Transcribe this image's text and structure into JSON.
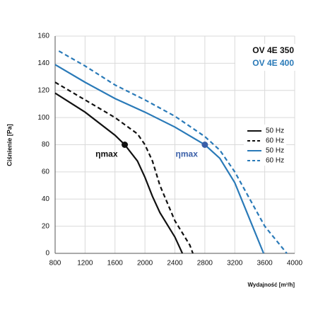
{
  "chart_data": {
    "type": "line",
    "xlabel": "Wydajność [m³/h]",
    "ylabel": "Ciśnienie [Pa]",
    "xlim": [
      800,
      4000
    ],
    "xticks": [
      800,
      1200,
      1600,
      2000,
      2400,
      2800,
      3200,
      3600,
      4000
    ],
    "ylim": [
      0,
      160
    ],
    "yticks": [
      0,
      20,
      40,
      60,
      80,
      100,
      120,
      140,
      160
    ],
    "grid": true,
    "legend_titles": [
      {
        "text": "OV 4E 350",
        "color": "#111111"
      },
      {
        "text": "OV 4E 400",
        "color": "#2a7ab8"
      }
    ],
    "series": [
      {
        "name": "50 Hz",
        "color": "#111111",
        "dashed": false,
        "x": [
          800,
          1200,
          1600,
          1730,
          1900,
          2000,
          2100,
          2200,
          2400,
          2500
        ],
        "values": [
          118,
          104,
          87,
          80,
          68,
          56,
          42,
          30,
          12,
          0
        ]
      },
      {
        "name": "60 Hz",
        "color": "#111111",
        "dashed": true,
        "x": [
          800,
          1200,
          1600,
          1900,
          2000,
          2100,
          2200,
          2400,
          2600,
          2640
        ],
        "values": [
          126,
          113,
          100,
          88,
          80,
          68,
          50,
          24,
          6,
          0
        ]
      },
      {
        "name": "50 Hz",
        "color": "#2a7ab8",
        "dashed": false,
        "x": [
          800,
          1200,
          1600,
          2000,
          2400,
          2800,
          3000,
          3200,
          3400,
          3585
        ],
        "values": [
          139,
          126,
          114,
          104,
          93,
          80,
          70,
          52,
          25,
          0
        ]
      },
      {
        "name": "60 Hz",
        "color": "#2a7ab8",
        "dashed": true,
        "x": [
          850,
          1200,
          1600,
          2000,
          2400,
          2800,
          3000,
          3200,
          3400,
          3600,
          3895
        ],
        "values": [
          149,
          138,
          124,
          113,
          101,
          86,
          76,
          60,
          40,
          20,
          0
        ]
      }
    ],
    "annotations": [
      {
        "text": "ηmax",
        "x": 1730,
        "y": 80,
        "color": "#111111"
      },
      {
        "text": "ηmax",
        "x": 2800,
        "y": 80,
        "color": "#3a5fa8"
      }
    ]
  }
}
